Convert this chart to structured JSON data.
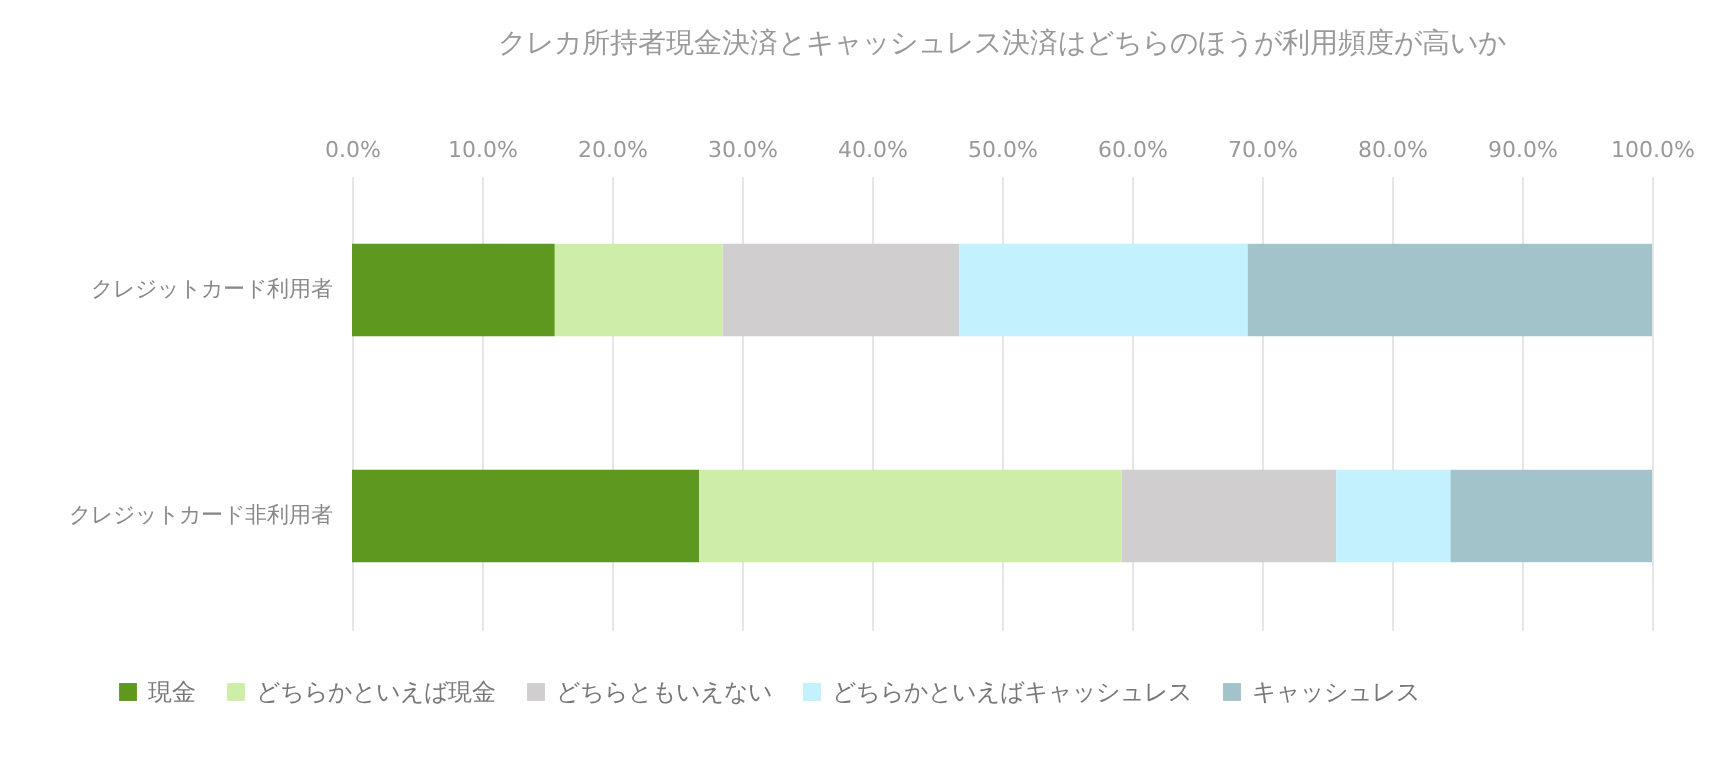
{
  "chart_data": {
    "type": "bar",
    "orientation": "horizontal",
    "stacked": true,
    "title": "クレカ所持者現金決済とキャッシュレス決済はどちらのほうが利用頻度が高いか",
    "categories": [
      "クレジットカード利用者",
      "クレジットカード非利用者"
    ],
    "series": [
      {
        "name": "現金",
        "color": "#5e981f",
        "values": [
          15.6,
          26.7
        ]
      },
      {
        "name": "どちらかといえば現金",
        "color": "#ceeda8",
        "values": [
          12.9,
          32.5
        ]
      },
      {
        "name": "どちらともいえない",
        "color": "#d0cecf",
        "values": [
          18.2,
          16.5
        ]
      },
      {
        "name": "どちらかといえばキャッシュレス",
        "color": "#c3f2fe",
        "values": [
          22.2,
          8.8
        ]
      },
      {
        "name": "キャッシュレス",
        "color": "#a2c3c9",
        "values": [
          31.1,
          15.5
        ]
      }
    ],
    "xlim": [
      0,
      100
    ],
    "xticks": [
      {
        "value": 0,
        "label": "0.0%"
      },
      {
        "value": 10,
        "label": "10.0%"
      },
      {
        "value": 20,
        "label": "20.0%"
      },
      {
        "value": 30,
        "label": "30.0%"
      },
      {
        "value": 40,
        "label": "40.0%"
      },
      {
        "value": 50,
        "label": "50.0%"
      },
      {
        "value": 60,
        "label": "60.0%"
      },
      {
        "value": 70,
        "label": "70.0%"
      },
      {
        "value": 80,
        "label": "80.0%"
      },
      {
        "value": 90,
        "label": "90.0%"
      },
      {
        "value": 100,
        "label": "100.0%"
      }
    ],
    "grid": "x",
    "legend": "bottom"
  }
}
